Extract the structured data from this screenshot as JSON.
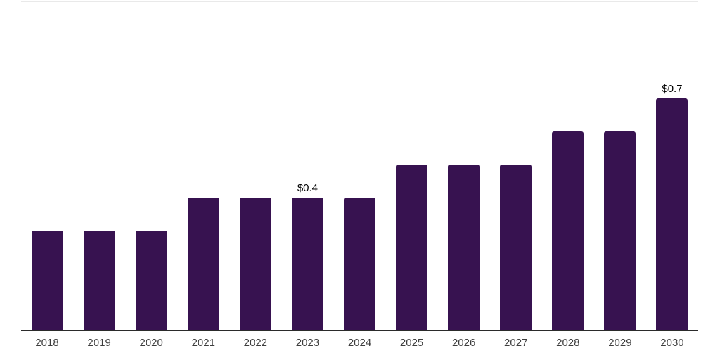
{
  "page": {
    "background_color": "#ffffff",
    "top_rule_color": "#e9e9e9"
  },
  "chart_data": {
    "type": "bar",
    "title": "",
    "xlabel": "",
    "ylabel": "",
    "categories": [
      "2018",
      "2019",
      "2020",
      "2021",
      "2022",
      "2023",
      "2024",
      "2025",
      "2026",
      "2027",
      "2028",
      "2029",
      "2030"
    ],
    "values": [
      0.3,
      0.3,
      0.3,
      0.4,
      0.4,
      0.4,
      0.4,
      0.5,
      0.5,
      0.5,
      0.6,
      0.6,
      0.7
    ],
    "data_labels": {
      "2023": "$0.4",
      "2030": "$0.7"
    },
    "ylim": [
      0,
      0.75
    ],
    "grid": false,
    "legend": false,
    "y_axis_visible": false,
    "bar_color": "#371250",
    "axis_line_color": "#2b2b2b",
    "tick_label_color": "#3d3d3d",
    "value_label_color": "#000000"
  }
}
